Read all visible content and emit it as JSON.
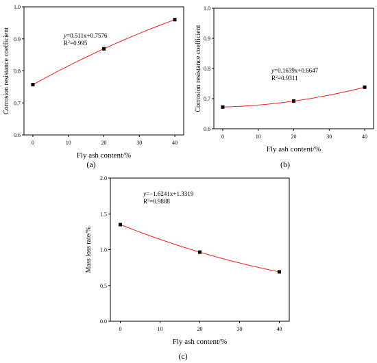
{
  "chart_data": [
    {
      "type": "scatter",
      "panel_label": "(a)",
      "xlabel": "Fly ash content/%",
      "ylabel": "Corrosion resistance coefficient",
      "xlim": [
        -2.5,
        42.5
      ],
      "ylim": [
        0.6,
        1.0
      ],
      "xticks": [
        0,
        10,
        20,
        30,
        40
      ],
      "yticks": [
        0.6,
        0.7,
        0.8,
        0.9,
        1.0
      ],
      "ytick_labels": [
        "0.6",
        "0.7",
        "0.8",
        "0.9",
        "1.0"
      ],
      "x": [
        0,
        20,
        40
      ],
      "y": [
        0.757,
        0.869,
        0.96
      ],
      "fit": {
        "type": "quadratic",
        "y_at_x": [
          [
            0,
            0.757
          ],
          [
            20,
            0.869
          ],
          [
            40,
            0.96
          ]
        ],
        "color": "#ff0000"
      },
      "equation": {
        "lhs": "y",
        "rhs": "=0.511x+0.7576"
      },
      "r2": {
        "base": "R",
        "sup": "2",
        "value": "=0.995"
      },
      "marker_color": "#000000"
    },
    {
      "type": "scatter",
      "panel_label": "(b)",
      "xlabel": "Fly ash content/%",
      "ylabel": "Corrosion resistance coefficient",
      "xlim": [
        -2.5,
        42.5
      ],
      "ylim": [
        0.6,
        1.0
      ],
      "xticks": [
        0,
        10,
        20,
        30,
        40
      ],
      "yticks": [
        0.6,
        0.7,
        0.8,
        0.9,
        1.0
      ],
      "ytick_labels": [
        "0.6",
        "0.7",
        "0.8",
        "0.9",
        "1.0"
      ],
      "x": [
        0,
        20,
        40
      ],
      "y": [
        0.672,
        0.692,
        0.738
      ],
      "fit": {
        "type": "quadratic",
        "y_at_x": [
          [
            0,
            0.672
          ],
          [
            20,
            0.692
          ],
          [
            40,
            0.738
          ]
        ],
        "color": "#ff0000"
      },
      "equation": {
        "lhs": "y",
        "rhs": "=0.1639x+0.6647"
      },
      "r2": {
        "base": "R",
        "sup": "2",
        "value": "=0.9311"
      },
      "marker_color": "#000000"
    },
    {
      "type": "scatter",
      "panel_label": "(c)",
      "xlabel": "Fly ash content/%",
      "ylabel": "Mass loss rate/%",
      "xlim": [
        -2.5,
        42.5
      ],
      "ylim": [
        0.0,
        2.0
      ],
      "xticks": [
        0,
        10,
        20,
        30,
        40
      ],
      "yticks": [
        0.0,
        0.5,
        1.0,
        1.5,
        2.0
      ],
      "ytick_labels": [
        "0.0",
        "0.5",
        "1.0",
        "1.5",
        "2.0"
      ],
      "x": [
        0,
        20,
        40
      ],
      "y": [
        1.35,
        0.965,
        0.69
      ],
      "fit": {
        "type": "quadratic",
        "y_at_x": [
          [
            0,
            1.35
          ],
          [
            20,
            0.965
          ],
          [
            40,
            0.69
          ]
        ],
        "color": "#ff0000"
      },
      "equation": {
        "lhs": "y",
        "rhs": "=−1.6241x+1.3319"
      },
      "r2": {
        "base": "R",
        "sup": "2",
        "value": "=0.9888"
      },
      "marker_color": "#000000"
    }
  ]
}
